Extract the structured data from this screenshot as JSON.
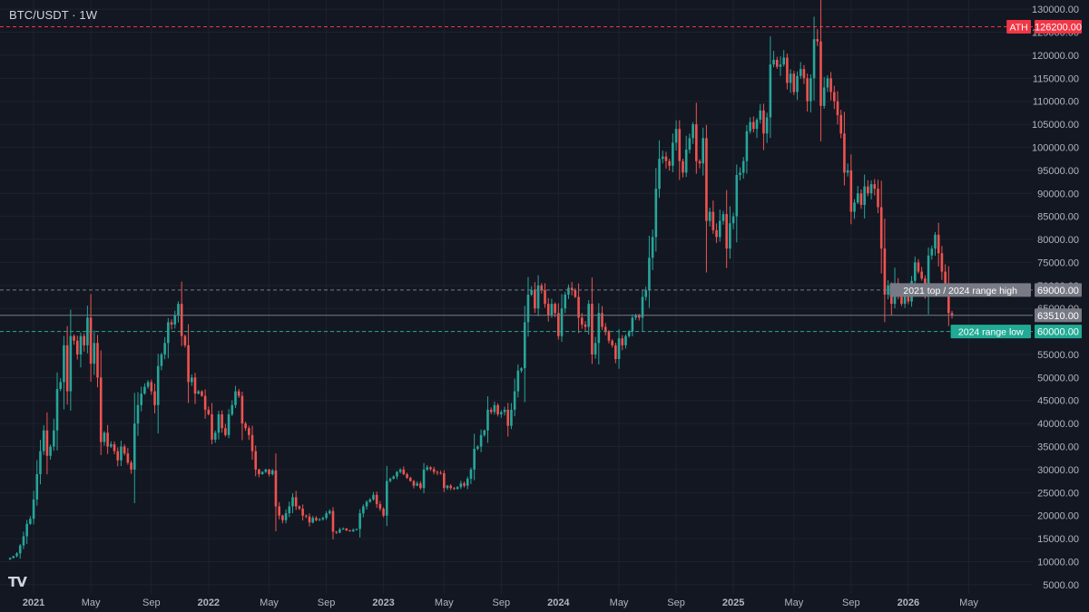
{
  "header": {
    "title": "BTC/USDT · 1W"
  },
  "logo": {
    "text": "TV"
  },
  "colors": {
    "background": "#131722",
    "grid": "#1e222d",
    "axis_text": "#b2b5be",
    "up": "#26a69a",
    "down": "#ef5350",
    "ath_line": "#f23645",
    "range_line": "#787b86",
    "support_line": "#22ab94",
    "last_price": "#787b86"
  },
  "chart_data": {
    "type": "candlestick",
    "interval": "1W",
    "symbol": "BTC/USDT",
    "ylim": [
      3000,
      132000
    ],
    "y_ticks": [
      130000,
      125000,
      120000,
      115000,
      110000,
      105000,
      100000,
      95000,
      90000,
      85000,
      80000,
      75000,
      70000,
      65000,
      60000,
      55000,
      50000,
      45000,
      40000,
      35000,
      30000,
      25000,
      20000,
      15000,
      10000,
      5000
    ],
    "x_ticks": [
      {
        "label": "2021",
        "index": 8,
        "bold": true
      },
      {
        "label": "May",
        "index": 25,
        "bold": false
      },
      {
        "label": "Sep",
        "index": 43,
        "bold": false
      },
      {
        "label": "2022",
        "index": 60,
        "bold": true
      },
      {
        "label": "May",
        "index": 78,
        "bold": false
      },
      {
        "label": "Sep",
        "index": 95,
        "bold": false
      },
      {
        "label": "2023",
        "index": 112,
        "bold": true
      },
      {
        "label": "May",
        "index": 130,
        "bold": false
      },
      {
        "label": "Sep",
        "index": 147,
        "bold": false
      },
      {
        "label": "2024",
        "index": 164,
        "bold": true
      },
      {
        "label": "May",
        "index": 182,
        "bold": false
      },
      {
        "label": "Sep",
        "index": 199,
        "bold": false
      },
      {
        "label": "2025",
        "index": 216,
        "bold": true
      },
      {
        "label": "May",
        "index": 234,
        "bold": false
      },
      {
        "label": "Sep",
        "index": 251,
        "bold": false
      },
      {
        "label": "2026",
        "index": 268,
        "bold": true
      },
      {
        "label": "May",
        "index": 286,
        "bold": false
      }
    ],
    "x_range_index": [
      -2,
      305
    ],
    "anchors": [
      [
        0,
        10500
      ],
      [
        1,
        10800
      ],
      [
        2,
        11200
      ],
      [
        3,
        11800
      ],
      [
        4,
        13500
      ],
      [
        5,
        15500
      ],
      [
        6,
        18200
      ],
      [
        7,
        19300
      ],
      [
        8,
        23500
      ],
      [
        9,
        29000
      ],
      [
        10,
        34000
      ],
      [
        11,
        38500
      ],
      [
        12,
        33000
      ],
      [
        13,
        35000
      ],
      [
        14,
        38500
      ],
      [
        15,
        47500
      ],
      [
        16,
        49000
      ],
      [
        17,
        57000
      ],
      [
        18,
        47000
      ],
      [
        19,
        59000
      ],
      [
        20,
        58000
      ],
      [
        21,
        55000
      ],
      [
        22,
        59000
      ],
      [
        23,
        57000
      ],
      [
        24,
        63000
      ],
      [
        25,
        53000
      ],
      [
        26,
        57500
      ],
      [
        27,
        50000
      ],
      [
        28,
        36000
      ],
      [
        29,
        38000
      ],
      [
        30,
        35000
      ],
      [
        31,
        35500
      ],
      [
        32,
        34000
      ],
      [
        33,
        32000
      ],
      [
        34,
        35000
      ],
      [
        35,
        33500
      ],
      [
        36,
        31500
      ],
      [
        37,
        30000
      ],
      [
        38,
        40000
      ],
      [
        39,
        44000
      ],
      [
        40,
        46500
      ],
      [
        41,
        48000
      ],
      [
        42,
        49000
      ],
      [
        43,
        47000
      ],
      [
        44,
        44000
      ],
      [
        45,
        52500
      ],
      [
        46,
        55000
      ],
      [
        47,
        57500
      ],
      [
        48,
        62000
      ],
      [
        49,
        61500
      ],
      [
        50,
        63500
      ],
      [
        51,
        66000
      ],
      [
        52,
        59000
      ],
      [
        53,
        57000
      ],
      [
        54,
        49000
      ],
      [
        55,
        50000
      ],
      [
        56,
        46500
      ],
      [
        57,
        47000
      ],
      [
        58,
        46000
      ],
      [
        59,
        43000
      ],
      [
        60,
        42000
      ],
      [
        61,
        36500
      ],
      [
        62,
        38000
      ],
      [
        63,
        42000
      ],
      [
        64,
        39000
      ],
      [
        65,
        37500
      ],
      [
        66,
        42000
      ],
      [
        67,
        44000
      ],
      [
        68,
        47000
      ],
      [
        69,
        46000
      ],
      [
        70,
        40000
      ],
      [
        71,
        39000
      ],
      [
        72,
        37500
      ],
      [
        73,
        34000
      ],
      [
        74,
        30000
      ],
      [
        75,
        29000
      ],
      [
        76,
        29500
      ],
      [
        77,
        30000
      ],
      [
        78,
        29000
      ],
      [
        79,
        29800
      ],
      [
        80,
        22000
      ],
      [
        81,
        20000
      ],
      [
        82,
        19000
      ],
      [
        83,
        20500
      ],
      [
        84,
        22000
      ],
      [
        85,
        24000
      ],
      [
        86,
        22000
      ],
      [
        87,
        21500
      ],
      [
        88,
        20000
      ],
      [
        89,
        19800
      ],
      [
        90,
        18500
      ],
      [
        91,
        19500
      ],
      [
        92,
        19000
      ],
      [
        93,
        19200
      ],
      [
        94,
        19500
      ],
      [
        95,
        20500
      ],
      [
        96,
        21000
      ],
      [
        97,
        16500
      ],
      [
        98,
        16300
      ],
      [
        99,
        17000
      ],
      [
        100,
        17200
      ],
      [
        101,
        16800
      ],
      [
        102,
        16600
      ],
      [
        103,
        16900
      ],
      [
        104,
        17100
      ],
      [
        105,
        20500
      ],
      [
        106,
        22000
      ],
      [
        107,
        23000
      ],
      [
        108,
        23500
      ],
      [
        109,
        24500
      ],
      [
        110,
        22500
      ],
      [
        111,
        21500
      ],
      [
        112,
        20000
      ],
      [
        113,
        27500
      ],
      [
        114,
        28000
      ],
      [
        115,
        28500
      ],
      [
        116,
        29500
      ],
      [
        117,
        30000
      ],
      [
        118,
        29000
      ],
      [
        119,
        28200
      ],
      [
        120,
        27500
      ],
      [
        121,
        26500
      ],
      [
        122,
        27000
      ],
      [
        123,
        26000
      ],
      [
        124,
        30000
      ],
      [
        125,
        30500
      ],
      [
        126,
        30100
      ],
      [
        127,
        29500
      ],
      [
        128,
        29300
      ],
      [
        129,
        29200
      ],
      [
        130,
        26000
      ],
      [
        131,
        26500
      ],
      [
        132,
        26000
      ],
      [
        133,
        25800
      ],
      [
        134,
        26200
      ],
      [
        135,
        27000
      ],
      [
        136,
        26500
      ],
      [
        137,
        28000
      ],
      [
        138,
        30000
      ],
      [
        139,
        34500
      ],
      [
        140,
        35000
      ],
      [
        141,
        37500
      ],
      [
        142,
        38500
      ],
      [
        143,
        43000
      ],
      [
        144,
        42500
      ],
      [
        145,
        44000
      ],
      [
        146,
        42000
      ],
      [
        147,
        42500
      ],
      [
        148,
        43000
      ],
      [
        149,
        39500
      ],
      [
        150,
        43000
      ],
      [
        151,
        47000
      ],
      [
        152,
        51500
      ],
      [
        153,
        52000
      ],
      [
        154,
        62000
      ],
      [
        155,
        68000
      ],
      [
        156,
        69000
      ],
      [
        157,
        65000
      ],
      [
        158,
        70000
      ],
      [
        159,
        69000
      ],
      [
        160,
        66000
      ],
      [
        161,
        63500
      ],
      [
        162,
        66000
      ],
      [
        163,
        64000
      ],
      [
        164,
        59000
      ],
      [
        165,
        65000
      ],
      [
        166,
        68000
      ],
      [
        167,
        69500
      ],
      [
        168,
        69000
      ],
      [
        169,
        67500
      ],
      [
        170,
        63000
      ],
      [
        171,
        61500
      ],
      [
        172,
        61000
      ],
      [
        173,
        66000
      ],
      [
        174,
        55000
      ],
      [
        175,
        57500
      ],
      [
        176,
        64000
      ],
      [
        177,
        61000
      ],
      [
        178,
        60000
      ],
      [
        179,
        58000
      ],
      [
        180,
        57000
      ],
      [
        181,
        54000
      ],
      [
        182,
        58500
      ],
      [
        183,
        57000
      ],
      [
        184,
        59000
      ],
      [
        185,
        60000
      ],
      [
        186,
        63000
      ],
      [
        187,
        63500
      ],
      [
        188,
        63000
      ],
      [
        189,
        67500
      ],
      [
        190,
        69000
      ],
      [
        191,
        76000
      ],
      [
        192,
        80500
      ],
      [
        193,
        91000
      ],
      [
        194,
        97500
      ],
      [
        195,
        98000
      ],
      [
        196,
        97000
      ],
      [
        197,
        96000
      ],
      [
        198,
        101000
      ],
      [
        199,
        104000
      ],
      [
        200,
        97000
      ],
      [
        201,
        94500
      ],
      [
        202,
        99500
      ],
      [
        203,
        102000
      ],
      [
        204,
        105000
      ],
      [
        205,
        97000
      ],
      [
        206,
        96500
      ],
      [
        207,
        102000
      ],
      [
        208,
        84000
      ],
      [
        209,
        86000
      ],
      [
        210,
        82000
      ],
      [
        211,
        80500
      ],
      [
        212,
        84000
      ],
      [
        213,
        85500
      ],
      [
        214,
        78000
      ],
      [
        215,
        83500
      ],
      [
        216,
        85000
      ],
      [
        217,
        94000
      ],
      [
        218,
        94500
      ],
      [
        219,
        97000
      ],
      [
        220,
        103500
      ],
      [
        221,
        105500
      ],
      [
        222,
        104000
      ],
      [
        223,
        106000
      ],
      [
        224,
        108000
      ],
      [
        225,
        103000
      ],
      [
        226,
        106500
      ],
      [
        227,
        118000
      ],
      [
        228,
        119000
      ],
      [
        229,
        117500
      ],
      [
        230,
        118000
      ],
      [
        231,
        119500
      ],
      [
        232,
        114000
      ],
      [
        233,
        116000
      ],
      [
        234,
        112000
      ],
      [
        235,
        115500
      ],
      [
        236,
        117000
      ],
      [
        237,
        115000
      ],
      [
        238,
        110000
      ],
      [
        239,
        115000
      ],
      [
        240,
        123500
      ],
      [
        241,
        123000
      ],
      [
        242,
        109000
      ],
      [
        243,
        113000
      ],
      [
        244,
        115000
      ],
      [
        245,
        112000
      ],
      [
        246,
        110000
      ],
      [
        247,
        107000
      ],
      [
        248,
        103000
      ],
      [
        249,
        94500
      ],
      [
        250,
        95000
      ],
      [
        251,
        86000
      ],
      [
        252,
        88000
      ],
      [
        253,
        90000
      ],
      [
        254,
        87500
      ],
      [
        255,
        91500
      ],
      [
        256,
        90000
      ],
      [
        257,
        92000
      ],
      [
        258,
        91000
      ],
      [
        259,
        87000
      ],
      [
        260,
        78000
      ],
      [
        261,
        68000
      ],
      [
        262,
        70000
      ],
      [
        263,
        66000
      ],
      [
        264,
        70500
      ],
      [
        265,
        68000
      ],
      [
        266,
        66000
      ],
      [
        267,
        69000
      ],
      [
        268,
        66500
      ],
      [
        269,
        71000
      ],
      [
        270,
        75000
      ],
      [
        271,
        73000
      ],
      [
        272,
        71500
      ],
      [
        273,
        68000
      ],
      [
        274,
        76500
      ],
      [
        275,
        78000
      ],
      [
        276,
        81000
      ],
      [
        277,
        77000
      ],
      [
        278,
        73000
      ],
      [
        279,
        70000
      ],
      [
        280,
        64000
      ],
      [
        281,
        63510
      ]
    ],
    "key_levels": [
      {
        "name": "ath",
        "label": "ATH",
        "value_label": "126200.00",
        "value": 126200,
        "style": "dashed"
      },
      {
        "name": "range-high",
        "label": "2021 top / 2024 range high",
        "value_label": "69000.00",
        "value": 69000,
        "style": "dashed"
      },
      {
        "name": "last-price",
        "label": "",
        "value_label": "63510.00",
        "value": 63510,
        "style": "solid"
      },
      {
        "name": "range-low",
        "label": "2024 range low",
        "value_label": "60000.00",
        "value": 60000,
        "style": "dashed"
      }
    ],
    "last_price": 63510,
    "grid": true,
    "y_axis_position": "right",
    "x_axis_position": "bottom"
  }
}
